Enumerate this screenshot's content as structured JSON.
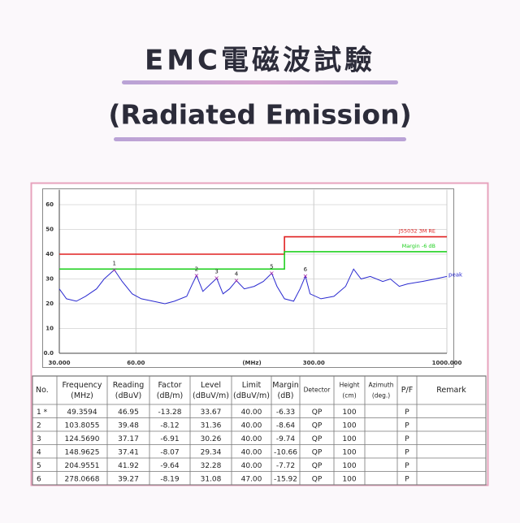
{
  "header": {
    "title": "EMC電磁波試驗",
    "subtitle": "(Radiated Emission)"
  },
  "chart_data": {
    "type": "line",
    "log_x": true,
    "grid": true,
    "xlim": [
      30,
      1000
    ],
    "ylim": [
      0,
      66
    ],
    "xlabel": "(MHz)",
    "xticks": [
      {
        "value": 30,
        "label": "30.000"
      },
      {
        "value": 60,
        "label": "60.00"
      },
      {
        "value": 300,
        "label": "300.00"
      },
      {
        "value": 1000,
        "label": "1000.000"
      }
    ],
    "yticks": [
      {
        "value": 0,
        "label": "0.0"
      },
      10,
      20,
      30,
      40,
      50,
      60
    ],
    "series": [
      {
        "name": "peak",
        "color": "#2a2ad0",
        "x": [
          30,
          32,
          35,
          38,
          42,
          45,
          49.36,
          53,
          58,
          63,
          70,
          78,
          85,
          95,
          100,
          103.8,
          110,
          118,
          124.6,
          132,
          140,
          148.96,
          160,
          175,
          190,
          204.96,
          215,
          230,
          250,
          265,
          278.07,
          290,
          320,
          360,
          400,
          430,
          460,
          500,
          560,
          600,
          650,
          700,
          800,
          900,
          1000
        ],
        "values": [
          26,
          22,
          21,
          23,
          26,
          30,
          33.7,
          29,
          24,
          22,
          21,
          20,
          21,
          23,
          28,
          31.4,
          25,
          28,
          30.3,
          24,
          26,
          29.3,
          26,
          27,
          29,
          32.3,
          27,
          22,
          21,
          26,
          31.1,
          24,
          22,
          23,
          27,
          34,
          30,
          31,
          29,
          30,
          27,
          28,
          29,
          30,
          31
        ]
      },
      {
        "name": "J55032 3M RE",
        "color": "#e02020",
        "x": [
          30,
          230,
          230,
          1000
        ],
        "values": [
          40,
          40,
          47,
          47
        ]
      },
      {
        "name": "Margin -6 dB",
        "color": "#20d020",
        "x": [
          30,
          230,
          230,
          1000
        ],
        "values": [
          34,
          34,
          41,
          41
        ]
      }
    ],
    "markers": {
      "color": "#a020a0",
      "labels": [
        "1",
        "2",
        "3",
        "4",
        "5",
        "6"
      ],
      "x": [
        49.3594,
        103.8055,
        124.569,
        148.9625,
        204.9551,
        278.0668
      ],
      "values": [
        33.67,
        31.36,
        30.26,
        29.34,
        32.28,
        31.08
      ]
    }
  },
  "table": {
    "header": [
      [
        "No."
      ],
      [
        "Frequency",
        "(MHz)"
      ],
      [
        "Reading",
        "(dBuV)"
      ],
      [
        "Factor",
        "(dB/m)"
      ],
      [
        "Level",
        "(dBuV/m)"
      ],
      [
        "Limit",
        "(dBuV/m)"
      ],
      [
        "Margin",
        "(dB)"
      ],
      [
        "Detector"
      ],
      [
        "Height",
        "(cm)"
      ],
      [
        "Azimuth",
        "(deg.)"
      ],
      [
        "P/F"
      ],
      [
        "Remark"
      ]
    ],
    "rows": [
      [
        "1 *",
        "49.3594",
        "46.95",
        "-13.28",
        "33.67",
        "40.00",
        "-6.33",
        "QP",
        "100",
        "",
        "P",
        ""
      ],
      [
        "2",
        "103.8055",
        "39.48",
        "-8.12",
        "31.36",
        "40.00",
        "-8.64",
        "QP",
        "100",
        "",
        "P",
        ""
      ],
      [
        "3",
        "124.5690",
        "37.17",
        "-6.91",
        "30.26",
        "40.00",
        "-9.74",
        "QP",
        "100",
        "",
        "P",
        ""
      ],
      [
        "4",
        "148.9625",
        "37.41",
        "-8.07",
        "29.34",
        "40.00",
        "-10.66",
        "QP",
        "100",
        "",
        "P",
        ""
      ],
      [
        "5",
        "204.9551",
        "41.92",
        "-9.64",
        "32.28",
        "40.00",
        "-7.72",
        "QP",
        "100",
        "",
        "P",
        ""
      ],
      [
        "6",
        "278.0668",
        "39.27",
        "-8.19",
        "31.08",
        "47.00",
        "-15.92",
        "QP",
        "100",
        "",
        "P",
        ""
      ]
    ]
  }
}
